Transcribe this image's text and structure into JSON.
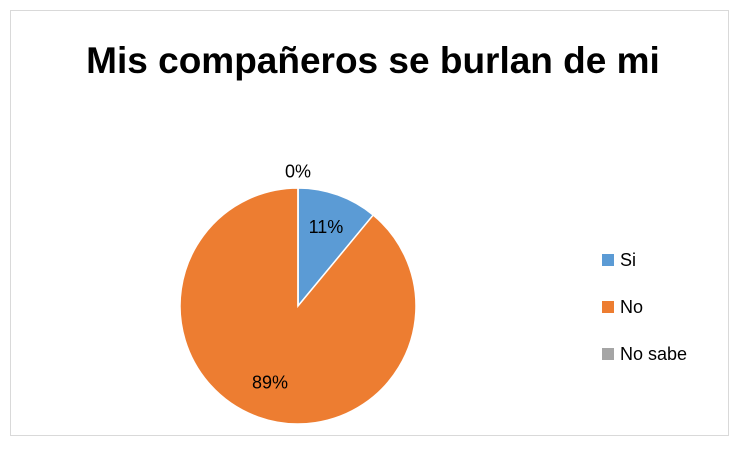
{
  "chart_data": {
    "type": "pie",
    "title": "Mis compañeros se burlan de mi",
    "categories": [
      "Si",
      "No",
      "No sabe"
    ],
    "values": [
      11,
      89,
      0
    ],
    "value_labels": [
      "11%",
      "89%",
      "0%"
    ],
    "colors": [
      "#5b9bd5",
      "#ed7d31",
      "#a5a5a5"
    ],
    "legend": "right"
  }
}
